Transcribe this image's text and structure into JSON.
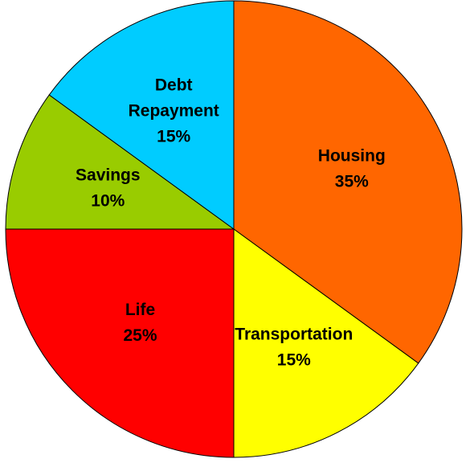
{
  "chart_data": {
    "type": "pie",
    "title": "",
    "start_angle_deg": 90,
    "direction": "clockwise",
    "slices": [
      {
        "label": "Housing",
        "lines": [
          "Housing"
        ],
        "value": 35,
        "value_label": "35%",
        "color": "#FF6600"
      },
      {
        "label": "Transportation",
        "lines": [
          "Transportation"
        ],
        "value": 15,
        "value_label": "15%",
        "color": "#FFFF00"
      },
      {
        "label": "Life",
        "lines": [
          "Life"
        ],
        "value": 25,
        "value_label": "25%",
        "color": "#FF0000"
      },
      {
        "label": "Savings",
        "lines": [
          "Savings"
        ],
        "value": 10,
        "value_label": "10%",
        "color": "#99CC00"
      },
      {
        "label": "Debt Repayment",
        "lines": [
          "Debt",
          "Repayment"
        ],
        "value": 15,
        "value_label": "15%",
        "color": "#00CCFF"
      }
    ],
    "legend": "none",
    "border_color": "#000000"
  }
}
